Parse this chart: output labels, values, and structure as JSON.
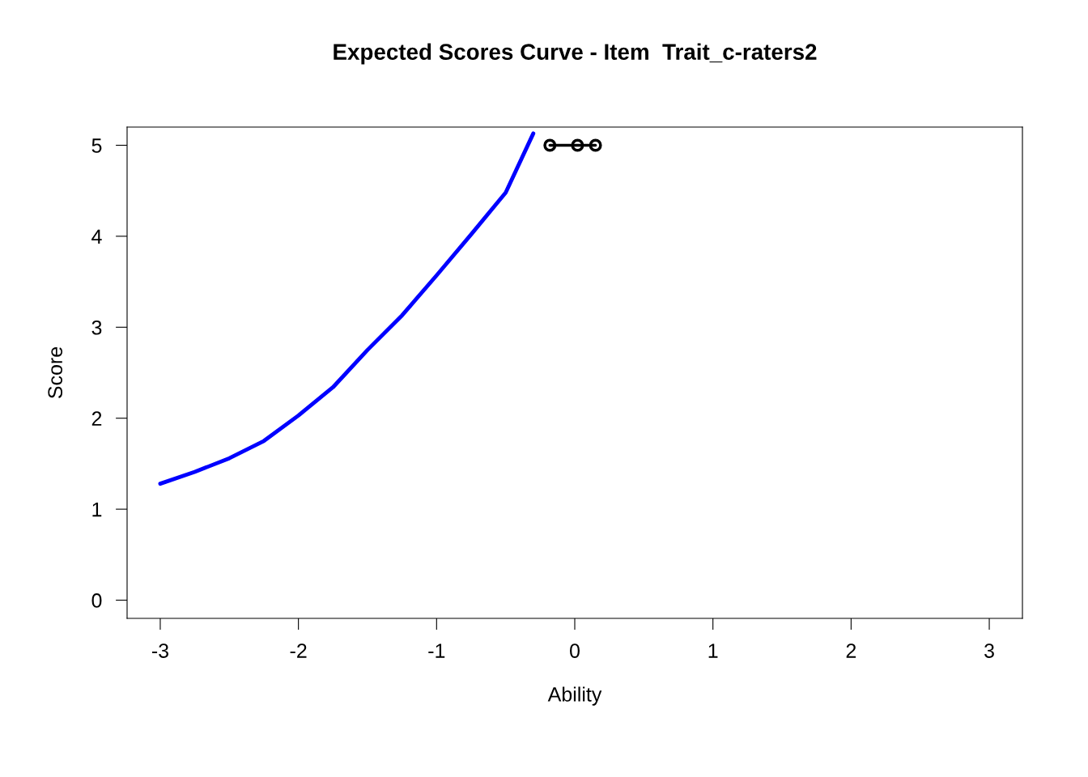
{
  "chart_data": {
    "type": "line",
    "title": "Expected Scores Curve - Item  Trait_c-raters2",
    "xlabel": "Ability",
    "ylabel": "Score",
    "series": [
      {
        "color": "#0000ff",
        "marker": "none",
        "x": [
          -3,
          -2.75,
          -2.5,
          -2.25,
          -2,
          -1.75,
          -1.5,
          -1.25,
          -1,
          -0.75,
          -0.5,
          -0.3
        ],
        "values": [
          1.28,
          1.41,
          1.56,
          1.75,
          2.03,
          2.34,
          2.75,
          3.13,
          3.57,
          4.02,
          4.48,
          5.13
        ]
      },
      {
        "color": "#000000",
        "marker": "circle",
        "x": [
          -0.18,
          0.02,
          0.15
        ],
        "values": [
          5,
          5,
          5
        ]
      }
    ],
    "xlim": [
      -3.24,
      3.24
    ],
    "ylim": [
      -0.2,
      5.2
    ],
    "xticks": [
      -3,
      -2,
      -1,
      0,
      1,
      2,
      3
    ],
    "yticks": [
      0,
      1,
      2,
      3,
      4,
      5
    ],
    "grid": false,
    "legend": false
  }
}
